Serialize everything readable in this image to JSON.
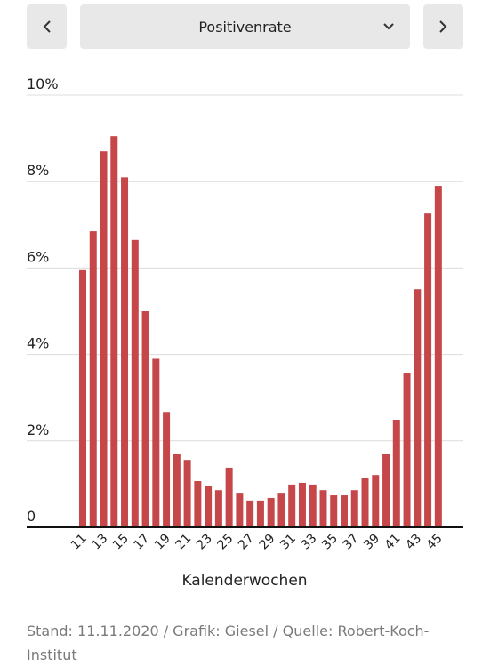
{
  "controls": {
    "selected": "Positivenrate"
  },
  "chart_data": {
    "type": "bar",
    "x_label": "Kalenderwochen",
    "source": "Stand: 11.11.2020 / Grafik: Giesel / Quelle: Robert-Koch-Institut",
    "categories": [
      "11",
      null,
      "13",
      null,
      "15",
      null,
      "17",
      null,
      "19",
      null,
      "21",
      null,
      "23",
      null,
      "25",
      null,
      "27",
      null,
      "29",
      null,
      "31",
      null,
      "33",
      null,
      "35",
      null,
      "37",
      null,
      "39",
      null,
      "41",
      null,
      "43",
      null,
      "45"
    ],
    "values": [
      5.95,
      6.85,
      8.7,
      9.05,
      8.1,
      6.65,
      5.0,
      3.9,
      2.67,
      1.69,
      1.56,
      1.07,
      0.95,
      0.86,
      1.38,
      0.8,
      0.62,
      0.62,
      0.68,
      0.8,
      0.99,
      1.03,
      0.99,
      0.86,
      0.74,
      0.74,
      0.86,
      1.15,
      1.21,
      1.69,
      2.49,
      3.58,
      5.51,
      7.26,
      7.9
    ],
    "color": "#c6474a",
    "ylim": [
      0,
      10
    ],
    "yticks": [
      0,
      {
        "value": 2,
        "label": "2%"
      },
      {
        "value": 4,
        "label": "4%"
      },
      {
        "value": 6,
        "label": "6%"
      },
      {
        "value": 8,
        "label": "8%"
      },
      {
        "value": 10,
        "label": "10%"
      }
    ],
    "grid": true
  }
}
